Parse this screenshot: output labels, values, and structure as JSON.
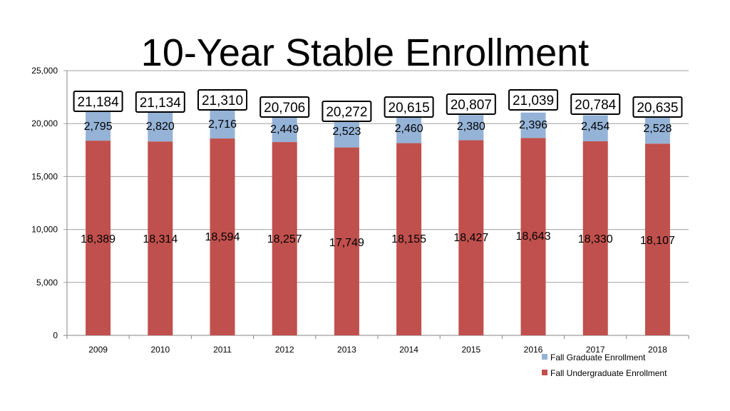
{
  "chart_data": {
    "type": "bar",
    "stacked": true,
    "title": "10-Year Stable Enrollment",
    "xlabel": "",
    "ylabel": "",
    "ylim": [
      0,
      25000
    ],
    "yticks": [
      0,
      5000,
      10000,
      15000,
      20000,
      25000
    ],
    "ytick_labels": [
      "0",
      "5,000",
      "10,000",
      "15,000",
      "20,000",
      "25,000"
    ],
    "grid": true,
    "legend_position": "bottom-right",
    "categories": [
      "2009",
      "2010",
      "2011",
      "2012",
      "2013",
      "2014",
      "2015",
      "2016",
      "2017",
      "2018"
    ],
    "series": [
      {
        "name": "Fall Undergraduate Enrollment",
        "color": "#C0504D",
        "values": [
          18389,
          18314,
          18594,
          18257,
          17749,
          18155,
          18427,
          18643,
          18330,
          18107
        ],
        "labels": [
          "18,389",
          "18,314",
          "18,594",
          "18,257",
          "17,749",
          "18,155",
          "18,427",
          "18,643",
          "18,330",
          "18,107"
        ]
      },
      {
        "name": "Fall Graduate Enrollment",
        "color": "#95B3D7",
        "values": [
          2795,
          2820,
          2716,
          2449,
          2523,
          2460,
          2380,
          2396,
          2454,
          2528
        ],
        "labels": [
          "2,795",
          "2,820",
          "2,716",
          "2,449",
          "2,523",
          "2,460",
          "2,380",
          "2,396",
          "2,454",
          "2,528"
        ]
      }
    ],
    "totals": [
      21184,
      21134,
      21310,
      20706,
      20272,
      20615,
      20807,
      21039,
      20784,
      20635
    ],
    "total_labels": [
      "21,184",
      "21,134",
      "21,310",
      "20,706",
      "20,272",
      "20,615",
      "20,807",
      "21,039",
      "20,784",
      "20,635"
    ]
  }
}
